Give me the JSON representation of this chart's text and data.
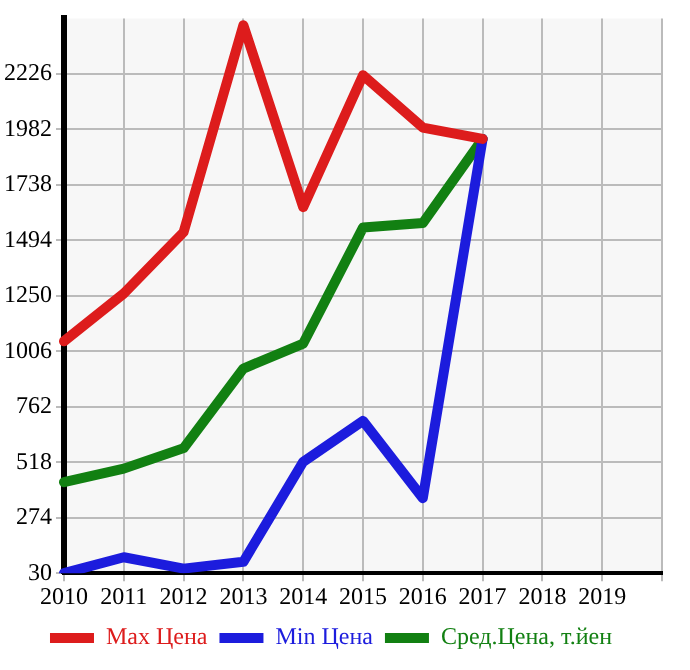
{
  "chart_data": {
    "type": "line",
    "categories": [
      "2010",
      "2011",
      "2012",
      "2013",
      "2014",
      "2015",
      "2016",
      "2017",
      "2018",
      "2019",
      null
    ],
    "series": [
      {
        "name": "Max Цена",
        "color": "#dd1c1c",
        "values": [
          1050,
          1260,
          1530,
          2440,
          1640,
          2220,
          1990,
          1940,
          null,
          null,
          null
        ]
      },
      {
        "name": "Min Цена",
        "color": "#1c1cdd",
        "values": [
          30,
          100,
          50,
          80,
          520,
          700,
          360,
          1940,
          null,
          null,
          null
        ]
      },
      {
        "name": "Сред.Цена, т.йен",
        "color": "#128012",
        "values": [
          430,
          490,
          580,
          930,
          1040,
          1550,
          1570,
          1940,
          null,
          null,
          null
        ]
      }
    ],
    "ylim": [
      30,
      2470
    ],
    "yticks": [
      30,
      274,
      518,
      762,
      1006,
      1250,
      1494,
      1738,
      1982,
      2226
    ],
    "grid": true,
    "legend": "bottom",
    "marker": "none",
    "line_style": "solid"
  }
}
